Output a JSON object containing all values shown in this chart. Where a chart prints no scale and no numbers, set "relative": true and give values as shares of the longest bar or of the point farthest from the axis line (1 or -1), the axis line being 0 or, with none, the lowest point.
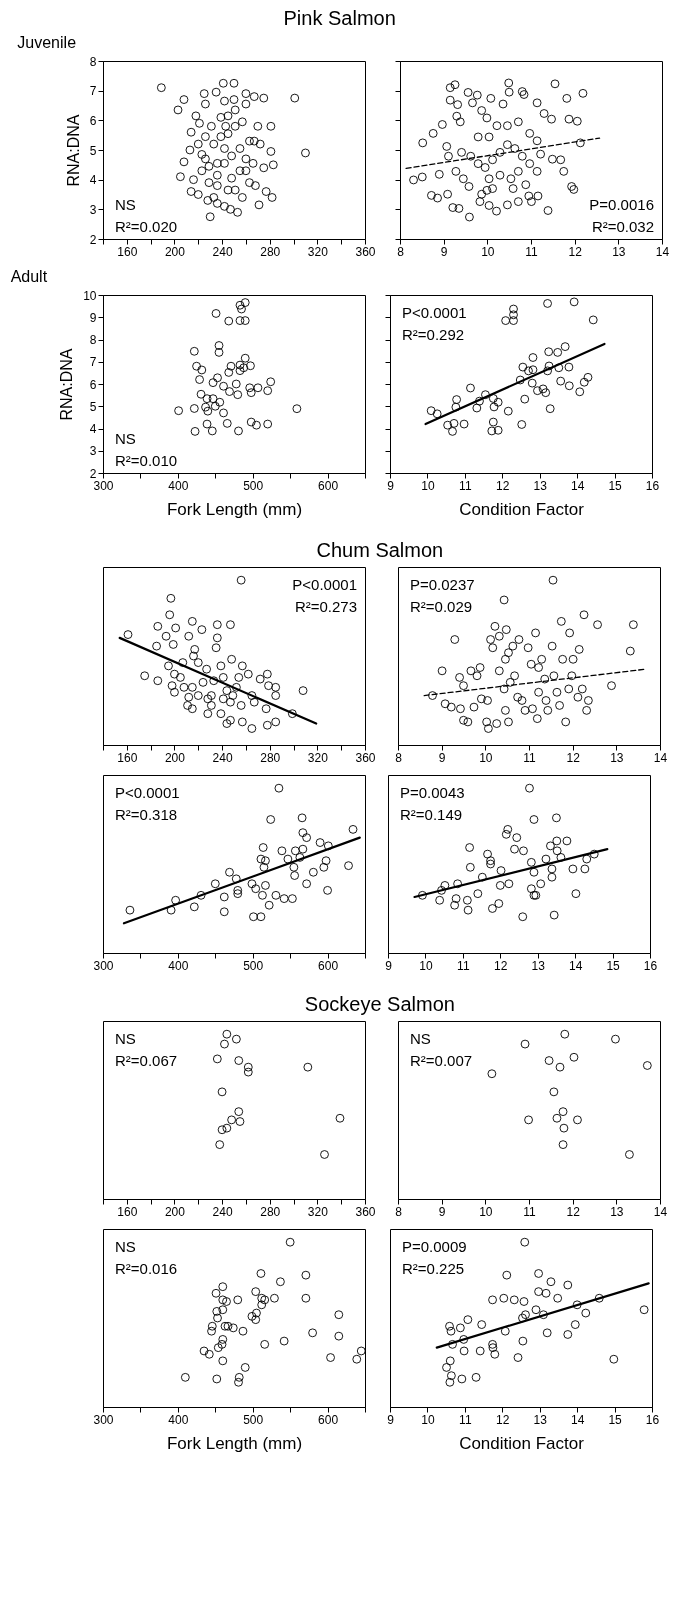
{
  "chart_data": [
    {
      "type": "scatter",
      "title": "Pink Salmon",
      "subtitle": "Juvenile",
      "ylabel": "RNA:DNA",
      "marker": "circle",
      "annotations": [
        "NS",
        "R²=0.020"
      ],
      "xlim": [
        140,
        360
      ],
      "xticks": [
        {
          "value": 140,
          "label": null
        },
        160,
        {
          "value": 180,
          "label": null
        },
        200,
        {
          "value": 220,
          "label": null
        },
        240,
        {
          "value": 260,
          "label": null
        },
        280,
        {
          "value": 300,
          "label": null
        },
        320,
        {
          "value": 340,
          "label": null
        },
        360
      ],
      "ylim": [
        2,
        8
      ],
      "yticks": [
        2,
        3,
        4,
        5,
        6,
        7,
        8
      ],
      "series": [
        {
          "type": "scatter",
          "color": "#000000",
          "x": [
            189,
            208,
            203,
            205,
            208,
            213,
            214,
            218,
            221,
            225,
            226,
            235,
            241,
            250,
            260,
            267,
            275,
            301,
            310,
            281,
            282,
            271,
            230,
            253,
            247,
            214,
            220,
            277,
            283,
            275,
            272,
            281,
            267,
            270,
            226,
            223,
            229,
            233,
            236,
            242,
            245,
            251,
            257,
            263,
            268,
            260,
            236,
            242,
            248,
            255,
            233,
            239,
            245,
            251,
            257,
            239,
            245,
            251,
            260,
            242,
            250,
            231,
            226,
            220,
            223,
            229,
            236,
            228,
            248,
            255,
            260,
            266,
            263,
            242,
            236,
            216,
            243
          ],
          "values": [
            7.1,
            6.7,
            6.35,
            4.1,
            4.6,
            5.0,
            5.6,
            6.15,
            5.9,
            6.9,
            6.55,
            6.95,
            7.25,
            7.25,
            6.9,
            6.8,
            6.75,
            6.75,
            4.9,
            5.8,
            3.4,
            3.15,
            2.75,
            2.9,
            3.0,
            3.6,
            3.5,
            3.6,
            4.5,
            4.4,
            5.2,
            4.95,
            5.3,
            5.8,
            4.7,
            4.3,
            3.9,
            3.4,
            3.2,
            3.1,
            3.65,
            3.65,
            3.4,
            3.9,
            3.8,
            4.3,
            4.15,
            4.55,
            4.8,
            5.05,
            5.2,
            5.45,
            5.55,
            5.8,
            5.95,
            6.1,
            6.15,
            6.35,
            6.55,
            6.65,
            6.7,
            5.8,
            5.45,
            5.2,
            4.85,
            4.45,
            3.8,
            3.3,
            4.05,
            4.3,
            4.7,
            4.55,
            5.3,
            5.05,
            4.55,
            4.0,
            5.8
          ]
        }
      ]
    },
    {
      "type": "scatter",
      "marker": "circle",
      "annotations": [
        "P=0.0016",
        "R²=0.032"
      ],
      "tick_labels": "x",
      "xlim": [
        8,
        14
      ],
      "xticks": [
        8,
        9,
        10,
        11,
        12,
        13,
        14
      ],
      "ylim": [
        2,
        8
      ],
      "yticks": [
        2,
        3,
        4,
        5,
        6,
        7,
        8
      ],
      "series": [
        {
          "type": "scatter",
          "color": "#000000",
          "x": [
            8.31,
            8.51,
            8.52,
            8.72,
            8.86,
            8.76,
            8.97,
            8.9,
            9.09,
            9.15,
            9.26,
            9.15,
            9.32,
            9.3,
            9.38,
            9.21,
            9.35,
            9.59,
            9.56,
            9.77,
            9.66,
            9.87,
            10.08,
            9.99,
            10.22,
            10.36,
            10.49,
            10.5,
            10.8,
            10.84,
            11.14,
            11.3,
            11.47,
            11.55,
            11.82,
            12.19,
            11.87,
            12.06,
            12.13,
            11.49,
            11.68,
            11.75,
            11.93,
            11.98,
            11.39,
            11.16,
            10.95,
            11.01,
            10.71,
            10.46,
            10.21,
            10.04,
            9.83,
            9.87,
            9.99,
            10.12,
            9.58,
            9.45,
            9.28,
            9.11,
            9.07,
            9.41,
            9.62,
            9.79,
            9.95,
            10.12,
            10.29,
            10.46,
            10.63,
            10.8,
            10.97,
            10.71,
            10.54,
            10.29,
            10.04,
            9.79,
            10.04,
            10.46,
            10.71,
            10.97,
            11.14,
            11.22,
            11.14,
            10.88,
            10.59
          ],
          "values": [
            3.99,
            4.09,
            5.24,
            3.47,
            3.38,
            5.56,
            5.86,
            4.18,
            3.51,
            7.1,
            7.2,
            6.68,
            6.53,
            6.14,
            5.95,
            3.06,
            3.03,
            2.74,
            6.94,
            6.85,
            6.59,
            6.33,
            6.74,
            6.08,
            5.82,
            6.55,
            7.26,
            6.95,
            6.97,
            6.87,
            6.59,
            6.23,
            6.04,
            7.23,
            6.74,
            6.91,
            6.04,
            5.97,
            5.24,
            4.69,
            4.67,
            4.28,
            3.77,
            3.67,
            2.96,
            3.45,
            3.45,
            3.26,
            3.26,
            3.15,
            2.94,
            3.13,
            3.26,
            3.51,
            3.64,
            3.7,
            3.77,
            4.03,
            4.28,
            4.79,
            5.12,
            4.92,
            4.79,
            4.54,
            4.41,
            4.67,
            4.92,
            5.18,
            5.05,
            4.79,
            4.54,
            4.28,
            4.03,
            4.15,
            4.03,
            5.44,
            5.44,
            5.82,
            5.95,
            5.56,
            5.31,
            4.86,
            4.28,
            3.83,
            3.7
          ]
        },
        {
          "type": "line",
          "marker": "none",
          "color": "#000000",
          "line_style": "dashed",
          "x": [
            8.14,
            12.57
          ],
          "values": [
            4.38,
            5.4
          ]
        }
      ]
    },
    {
      "type": "scatter",
      "subtitle": "Adult",
      "ylabel": "RNA:DNA",
      "xlabel": "Fork Length (mm)",
      "marker": "circle",
      "annotations": [
        "NS",
        "R²=0.010"
      ],
      "xlim": [
        300,
        650
      ],
      "xticks": [
        300,
        {
          "value": 350,
          "label": null
        },
        400,
        {
          "value": 450,
          "label": null
        },
        500,
        {
          "value": 550,
          "label": null
        },
        600,
        {
          "value": 650,
          "label": null
        }
      ],
      "ylim": [
        2,
        10
      ],
      "yticks": [
        2,
        3,
        4,
        5,
        6,
        7,
        8,
        9,
        10
      ],
      "series": [
        {
          "type": "scatter",
          "color": "#000000",
          "x": [
            401,
            422,
            423,
            422,
            425,
            432,
            429,
            431,
            439,
            440,
            439,
            446,
            447,
            453,
            447,
            450,
            456,
            451,
            455,
            455,
            461,
            461,
            466,
            469,
            468,
            471,
            468,
            481,
            483,
            490,
            483,
            485,
            490,
            480,
            478,
            483,
            488,
            490,
            497,
            496,
            498,
            498,
            505,
            507,
            520,
            520,
            524,
            559,
            483,
            437
          ],
          "values": [
            4.8,
            4.9,
            3.87,
            7.47,
            6.8,
            6.63,
            6.2,
            5.54,
            5.34,
            4.78,
            4.2,
            3.89,
            6.06,
            6.28,
            5.34,
            5.0,
            5.18,
            9.17,
            7.73,
            7.42,
            5.9,
            4.7,
            4.23,
            5.66,
            6.52,
            6.8,
            8.83,
            3.89,
            8.85,
            8.85,
            9.54,
            9.37,
            9.66,
            5.52,
            6.0,
            6.6,
            6.73,
            7.16,
            6.82,
            5.83,
            5.61,
            4.29,
            4.15,
            5.83,
            4.2,
            5.7,
            6.1,
            4.89,
            6.85,
            4.96
          ]
        }
      ]
    },
    {
      "type": "scatter",
      "xlabel": "Condition Factor",
      "marker": "circle",
      "annotations": [
        "P<0.0001",
        "R²=0.292"
      ],
      "tick_labels": "x",
      "xlim": [
        9,
        16
      ],
      "xticks": [
        9,
        10,
        11,
        12,
        13,
        14,
        15,
        16
      ],
      "ylim": [
        2,
        10
      ],
      "yticks": [
        2,
        3,
        4,
        5,
        6,
        7,
        8,
        9,
        10
      ],
      "series": [
        {
          "type": "scatter",
          "color": "#000000",
          "x": [
            10.1,
            10.26,
            10.54,
            10.71,
            10.67,
            10.78,
            10.76,
            10.98,
            11.15,
            11.32,
            11.39,
            11.55,
            11.76,
            11.76,
            11.72,
            11.89,
            11.78,
            11.89,
            12.16,
            12.09,
            12.3,
            12.3,
            12.3,
            12.52,
            12.6,
            12.48,
            12.55,
            12.7,
            12.82,
            12.8,
            12.82,
            12.94,
            13.09,
            13.16,
            13.21,
            13.28,
            13.25,
            13.21,
            13.24,
            13.48,
            13.68,
            13.56,
            13.51,
            13.78,
            13.79,
            14.07,
            14.19,
            14.29,
            13.92,
            14.43
          ],
          "values": [
            4.8,
            4.66,
            4.15,
            4.23,
            3.87,
            5.3,
            4.96,
            4.2,
            5.82,
            4.92,
            5.23,
            5.52,
            5.35,
            4.29,
            3.89,
            3.92,
            4.97,
            5.18,
            4.78,
            8.85,
            8.85,
            9.37,
            9.11,
            4.18,
            5.32,
            6.18,
            6.76,
            6.59,
            7.19,
            6.04,
            6.64,
            5.7,
            5.78,
            5.61,
            6.59,
            4.89,
            6.81,
            9.62,
            7.45,
            7.42,
            7.68,
            6.13,
            6.73,
            6.76,
            5.92,
            5.65,
            6.08,
            6.3,
            9.69,
            8.88
          ]
        },
        {
          "type": "line",
          "marker": "none",
          "color": "#000000",
          "line_style": "solid",
          "x": [
            9.95,
            14.73
          ],
          "values": [
            4.2,
            7.8
          ]
        }
      ]
    },
    {
      "type": "scatter",
      "title": "Chum Salmon",
      "marker": "circle",
      "relative": true,
      "annotations": [
        "P<0.0001",
        "R²=0.273"
      ],
      "xlim": [
        140,
        360
      ],
      "xticks": [
        {
          "value": 140,
          "label": null
        },
        160,
        {
          "value": 180,
          "label": null
        },
        200,
        {
          "value": 220,
          "label": null
        },
        240,
        {
          "value": 260,
          "label": null
        },
        280,
        {
          "value": 300,
          "label": null
        },
        320,
        {
          "value": 340,
          "label": null
        },
        360
      ],
      "series": [
        {
          "type": "scatter",
          "color": "#000000",
          "x": [
            256,
            197,
            196,
            215,
            186,
            201,
            223,
            236,
            247,
            161,
            185,
            193,
            199,
            212,
            217,
            236,
            235,
            248,
            175,
            186,
            195,
            200,
            198,
            200,
            205,
            208,
            212,
            211,
            215,
            220,
            224,
            228,
            231,
            220,
            227,
            233,
            239,
            241,
            244,
            247,
            247,
            252,
            254,
            257,
            262,
            256,
            265,
            265,
            257,
            267,
            272,
            278,
            279,
            285,
            285,
            277,
            278,
            285,
            299,
            308,
            231,
            241,
            249,
            228,
            239,
            244,
            215,
            207,
            216
          ],
          "values": [
            1,
            0.89,
            0.79,
            0.75,
            0.72,
            0.71,
            0.7,
            0.73,
            0.73,
            0.67,
            0.6,
            0.66,
            0.61,
            0.66,
            0.58,
            0.65,
            0.59,
            0.52,
            0.42,
            0.39,
            0.48,
            0.43,
            0.36,
            0.32,
            0.41,
            0.35,
            0.29,
            0.24,
            0.22,
            0.3,
            0.38,
            0.28,
            0.24,
            0.5,
            0.46,
            0.39,
            0.48,
            0.41,
            0.33,
            0.26,
            0.15,
            0.35,
            0.41,
            0.48,
            0.43,
            0.24,
            0.3,
            0.1,
            0.14,
            0.26,
            0.4,
            0.43,
            0.36,
            0.35,
            0.3,
            0.22,
            0.12,
            0.14,
            0.19,
            0.33,
            0.3,
            0.28,
            0.3,
            0.19,
            0.19,
            0.13,
            0.35,
            0.5,
            0.54
          ]
        },
        {
          "type": "line",
          "marker": "none",
          "color": "#000000",
          "line_style": "solid",
          "x": [
            154,
            319
          ],
          "values": [
            0.65,
            0.13
          ]
        }
      ]
    },
    {
      "type": "scatter",
      "marker": "circle",
      "relative": true,
      "annotations": [
        "P=0.0237",
        "R²=0.029"
      ],
      "xlim": [
        8,
        14
      ],
      "xticks": [
        8,
        9,
        10,
        11,
        12,
        13,
        14
      ],
      "series": [
        {
          "type": "scatter",
          "color": "#000000",
          "x": [
            10.43,
            9.01,
            9.3,
            8.79,
            9.08,
            9.22,
            9.43,
            9.5,
            9.6,
            9.41,
            9.5,
            9.67,
            9.74,
            9.81,
            9.88,
            9.91,
            10.05,
            10.03,
            10.07,
            10.26,
            10.12,
            10.17,
            10.22,
            10.32,
            10.48,
            10.46,
            10.53,
            10.32,
            10.43,
            10.57,
            10.53,
            10.46,
            10.67,
            10.74,
            10.77,
            10.63,
            10.84,
            10.91,
            10.98,
            11.05,
            11.08,
            11.15,
            11.22,
            11.22,
            11.19,
            11.29,
            11.36,
            11.39,
            11.43,
            11.53,
            11.57,
            11.64,
            11.7,
            11.74,
            11.77,
            11.84,
            11.91,
            11.93,
            12.01,
            11.98,
            12.15,
            12.22,
            12.12,
            12.26,
            12.32,
            12.36,
            12.57,
            12.89,
            13.32,
            13.39,
            11.55
          ],
          "values": [
            0.88,
            0.45,
            0.64,
            0.3,
            0.25,
            0.23,
            0.22,
            0.15,
            0.14,
            0.41,
            0.36,
            0.45,
            0.23,
            0.42,
            0.47,
            0.28,
            0.27,
            0.14,
            0.1,
            0.13,
            0.64,
            0.59,
            0.72,
            0.66,
            0.7,
            0.52,
            0.56,
            0.45,
            0.34,
            0.38,
            0.14,
            0.21,
            0.42,
            0.29,
            0.64,
            0.6,
            0.27,
            0.21,
            0.59,
            0.49,
            0.22,
            0.68,
            0.47,
            0.32,
            0.16,
            0.52,
            0.4,
            0.27,
            0.21,
            0.6,
            0.42,
            0.32,
            0.24,
            0.75,
            0.52,
            0.14,
            0.34,
            0.68,
            0.52,
            0.42,
            0.58,
            0.34,
            0.29,
            0.79,
            0.21,
            0.27,
            0.73,
            0.36,
            0.57,
            0.73,
            1
          ]
        },
        {
          "type": "line",
          "marker": "none",
          "color": "#000000",
          "line_style": "dashed",
          "x": [
            8.6,
            13.67
          ],
          "values": [
            0.3,
            0.46
          ]
        }
      ]
    },
    {
      "type": "scatter",
      "marker": "circle",
      "relative": true,
      "annotations": [
        "P<0.0001",
        "R²=0.318"
      ],
      "xlim": [
        300,
        650
      ],
      "xticks": [
        300,
        {
          "value": 350,
          "label": null
        },
        400,
        {
          "value": 450,
          "label": null
        },
        500,
        {
          "value": 550,
          "label": null
        },
        600,
        {
          "value": 650,
          "label": null
        }
      ],
      "series": [
        {
          "type": "scatter",
          "color": "#000000",
          "x": [
            336,
            391,
            397,
            422,
            431,
            450,
            462,
            462,
            469,
            478,
            480,
            480,
            499,
            501,
            504,
            511,
            513,
            517,
            514,
            511,
            517,
            515,
            522,
            524,
            531,
            535,
            539,
            542,
            547,
            553,
            555,
            556,
            557,
            563,
            566,
            567,
            572,
            572,
            567,
            581,
            590,
            595,
            598,
            600,
            601,
            628,
            634
          ],
          "values": [
            0.26,
            0.26,
            0.32,
            0.28,
            0.35,
            0.42,
            0.34,
            0.25,
            0.49,
            0.45,
            0.38,
            0.36,
            0.42,
            0.22,
            0.39,
            0.22,
            0.35,
            0.41,
            0.64,
            0.57,
            0.56,
            0.52,
            0.29,
            0.81,
            0.35,
            1,
            0.62,
            0.33,
            0.57,
            0.33,
            0.52,
            0.47,
            0.62,
            0.58,
            0.82,
            0.63,
            0.7,
            0.42,
            0.73,
            0.49,
            0.67,
            0.52,
            0.56,
            0.38,
            0.65,
            0.53,
            0.75
          ]
        },
        {
          "type": "line",
          "marker": "none",
          "color": "#000000",
          "line_style": "solid",
          "x": [
            328,
            643
          ],
          "values": [
            0.18,
            0.7
          ]
        }
      ]
    },
    {
      "type": "scatter",
      "marker": "circle",
      "relative": true,
      "annotations": [
        "P=0.0043",
        "R²=0.149"
      ],
      "xlim": [
        9,
        16
      ],
      "xticks": [
        9,
        10,
        11,
        12,
        13,
        14,
        15,
        16
      ],
      "series": [
        {
          "type": "scatter",
          "color": "#000000",
          "x": [
            9.92,
            10.38,
            10.43,
            10.52,
            10.78,
            10.82,
            10.86,
            11.12,
            11.14,
            11.18,
            11.2,
            11.4,
            11.52,
            11.66,
            11.74,
            11.74,
            11.79,
            11.96,
            12,
            12.02,
            12.16,
            12.2,
            12.23,
            12.38,
            12.44,
            12.62,
            12.6,
            12.78,
            12.83,
            12.9,
            12.83,
            12.9,
            12.95,
            12.9,
            13.08,
            13.22,
            13.34,
            13.38,
            13.38,
            13.44,
            13.5,
            13.51,
            13.52,
            13.62,
            13.78,
            13.94,
            14.02,
            14.26,
            14.31,
            14.51
          ],
          "values": [
            0.35,
            0.32,
            0.38,
            0.41,
            0.29,
            0.33,
            0.42,
            0.32,
            0.26,
            0.64,
            0.52,
            0.36,
            0.46,
            0.6,
            0.56,
            0.54,
            0.27,
            0.3,
            0.41,
            0.5,
            0.72,
            0.75,
            0.42,
            0.63,
            0.7,
            0.62,
            0.22,
            1,
            0.55,
            0.81,
            0.39,
            0.35,
            0.35,
            0.49,
            0.42,
            0.57,
            0.65,
            0.51,
            0.46,
            0.23,
            0.82,
            0.68,
            0.62,
            0.58,
            0.68,
            0.51,
            0.36,
            0.51,
            0.57,
            0.6
          ]
        },
        {
          "type": "line",
          "marker": "none",
          "color": "#000000",
          "line_style": "solid",
          "x": [
            9.71,
            14.86
          ],
          "values": [
            0.34,
            0.63
          ]
        }
      ]
    },
    {
      "type": "scatter",
      "title": "Sockeye Salmon",
      "marker": "circle",
      "relative": true,
      "annotations": [
        "NS",
        "R²=0.067"
      ],
      "xlim": [
        140,
        360
      ],
      "xticks": [
        {
          "value": 140,
          "label": null
        },
        160,
        {
          "value": 180,
          "label": null
        },
        200,
        {
          "value": 220,
          "label": null
        },
        240,
        {
          "value": 260,
          "label": null
        },
        280,
        {
          "value": 300,
          "label": null
        },
        320,
        {
          "value": 340,
          "label": null
        },
        360
      ],
      "series": [
        {
          "type": "scatter",
          "color": "#000000",
          "x": [
            236,
            242,
            244,
            252,
            254,
            262,
            262,
            240,
            240,
            244,
            238,
            248,
            254,
            255,
            312,
            326,
            339
          ],
          "values": [
            0.85,
            0.94,
            1,
            0.97,
            0.84,
            0.8,
            0.77,
            0.65,
            0.42,
            0.43,
            0.33,
            0.48,
            0.53,
            0.47,
            0.8,
            0.27,
            0.49
          ]
        }
      ]
    },
    {
      "type": "scatter",
      "marker": "circle",
      "relative": true,
      "annotations": [
        "NS",
        "R²=0.007"
      ],
      "xlim": [
        8,
        14
      ],
      "xticks": [
        8,
        9,
        10,
        11,
        12,
        13,
        14
      ],
      "series": [
        {
          "type": "scatter",
          "color": "#000000",
          "x": [
            10.15,
            10.91,
            10.99,
            11.46,
            11.57,
            11.71,
            11.82,
            11.64,
            11.78,
            11.8,
            11.78,
            12.03,
            12.11,
            12.98,
            13.3,
            13.71
          ],
          "values": [
            0.76,
            0.94,
            0.48,
            0.84,
            0.65,
            0.8,
            1,
            0.49,
            0.53,
            0.43,
            0.33,
            0.86,
            0.48,
            0.97,
            0.27,
            0.81
          ]
        }
      ]
    },
    {
      "type": "scatter",
      "xlabel": "Fork Length (mm)",
      "marker": "circle",
      "relative": true,
      "annotations": [
        "NS",
        "R²=0.016"
      ],
      "xlim": [
        300,
        650
      ],
      "xticks": [
        300,
        {
          "value": 350,
          "label": null
        },
        400,
        {
          "value": 450,
          "label": null
        },
        500,
        {
          "value": 550,
          "label": null
        },
        600,
        {
          "value": 650,
          "label": null
        }
      ],
      "series": [
        {
          "type": "scatter",
          "color": "#000000",
          "x": [
            410,
            435,
            442,
            446,
            445,
            451,
            452,
            453,
            452,
            454,
            459,
            460,
            460,
            460,
            460,
            460,
            465,
            463,
            467,
            474,
            480,
            482,
            481,
            487,
            490,
            499,
            504,
            504,
            505,
            511,
            512,
            512,
            516,
            516,
            529,
            537,
            542,
            550,
            571,
            571,
            580,
            604,
            615,
            615,
            645,
            639
          ],
          "values": [
            0.18,
            0.34,
            0.32,
            0.49,
            0.46,
            0.69,
            0.58,
            0.54,
            0.17,
            0.36,
            0.38,
            0.41,
            0.28,
            0.73,
            0.65,
            0.59,
            0.64,
            0.49,
            0.49,
            0.48,
            0.65,
            0.18,
            0.15,
            0.46,
            0.24,
            0.55,
            0.7,
            0.53,
            0.57,
            0.81,
            0.62,
            0.66,
            0.65,
            0.38,
            0.66,
            0.76,
            0.4,
            1,
            0.8,
            0.66,
            0.45,
            0.3,
            0.56,
            0.43,
            0.34,
            0.29
          ]
        }
      ]
    },
    {
      "type": "scatter",
      "xlabel": "Condition Factor",
      "marker": "circle",
      "relative": true,
      "annotations": [
        "P=0.0009",
        "R²=0.225"
      ],
      "xlim": [
        9,
        16
      ],
      "xticks": [
        9,
        10,
        11,
        12,
        13,
        14,
        15,
        16
      ],
      "series": [
        {
          "type": "scatter",
          "color": "#000000",
          "x": [
            10.51,
            10.59,
            10.63,
            10.61,
            10.64,
            10.6,
            10.67,
            10.88,
            10.92,
            10.97,
            10.98,
            11.08,
            11.3,
            11.41,
            11.45,
            11.74,
            11.74,
            11.75,
            11.8,
            12.04,
            12.08,
            12.12,
            12.32,
            12.42,
            12.55,
            12.58,
            12.54,
            12.62,
            12.6,
            12.9,
            12.97,
            12.97,
            13.1,
            13.17,
            13.2,
            13.3,
            13.48,
            13.75,
            13.75,
            13.95,
            14,
            14.23,
            14.59,
            14.98,
            15.79
          ],
          "values": [
            0.24,
            0.49,
            0.46,
            0.28,
            0.19,
            0.15,
            0.38,
            0.48,
            0.17,
            0.41,
            0.34,
            0.53,
            0.18,
            0.34,
            0.5,
            0.65,
            0.38,
            0.36,
            0.32,
            0.66,
            0.46,
            0.8,
            0.65,
            0.3,
            0.4,
            0.64,
            0.54,
            0.56,
            1,
            0.59,
            0.81,
            0.7,
            0.56,
            0.69,
            0.45,
            0.76,
            0.66,
            0.74,
            0.44,
            0.5,
            0.62,
            0.57,
            0.66,
            0.29,
            0.59
          ]
        },
        {
          "type": "line",
          "marker": "none",
          "color": "#000000",
          "line_style": "solid",
          "x": [
            10.25,
            15.91
          ],
          "values": [
            0.36,
            0.75
          ]
        }
      ]
    }
  ]
}
